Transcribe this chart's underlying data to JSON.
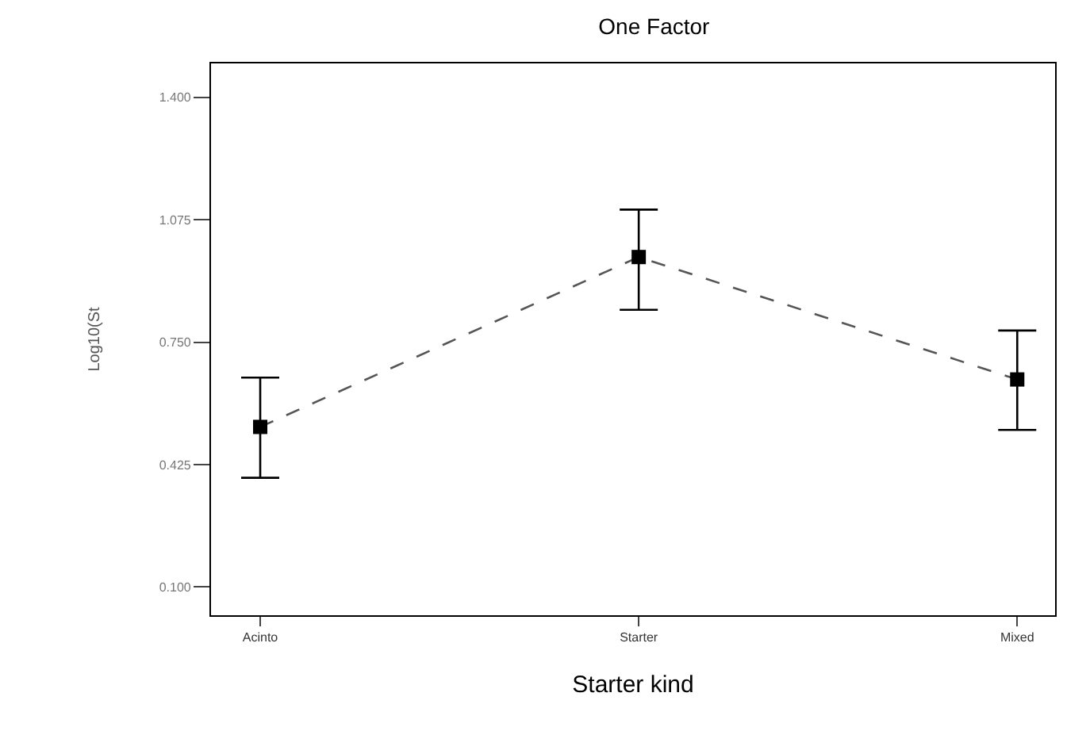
{
  "chart_data": {
    "type": "line",
    "title": "One Factor",
    "xlabel": "Starter kind",
    "ylabel": "Log10(St",
    "categories": [
      "Acinto",
      "Starter",
      "Mixed"
    ],
    "series": [
      {
        "color": "#000000",
        "values": [
          0.525,
          0.976,
          0.651
        ],
        "errors": [
          [
            0.39,
            0.656
          ],
          [
            0.836,
            1.102
          ],
          [
            0.517,
            0.781
          ]
        ]
      }
    ],
    "ylim": [
      0.025,
      1.49
    ],
    "yticks": [
      {
        "value": 0.1,
        "label": "0.100"
      },
      {
        "value": 0.425,
        "label": "0.425"
      },
      {
        "value": 0.75,
        "label": "0.750"
      },
      {
        "value": 1.075,
        "label": "1.075"
      },
      {
        "value": 1.4,
        "label": "1.400"
      }
    ],
    "marker": "square",
    "line_style": "dashed"
  }
}
